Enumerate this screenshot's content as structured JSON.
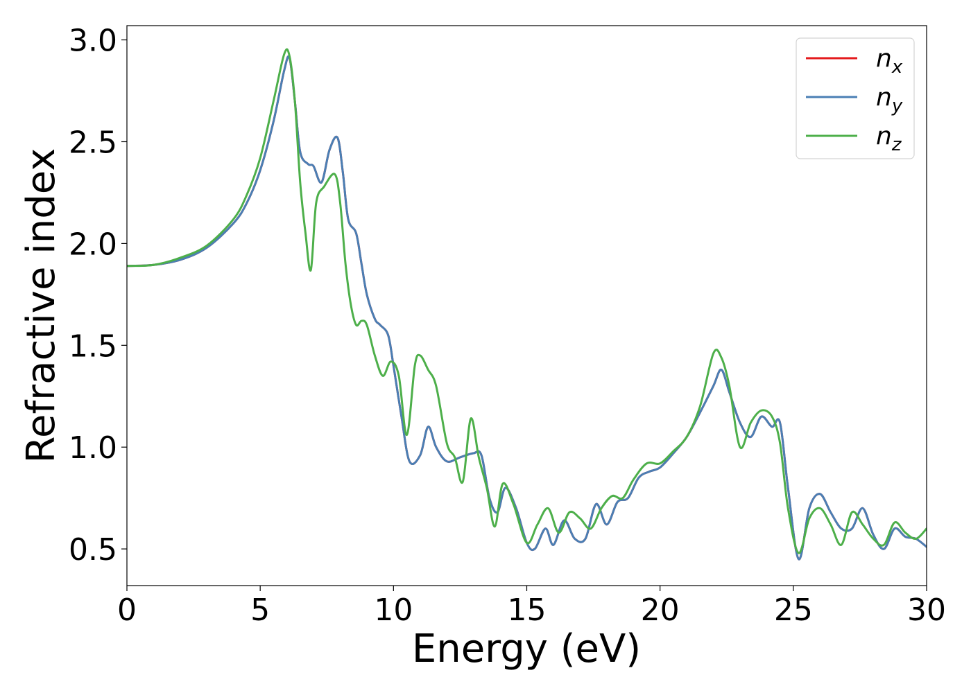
{
  "chart_data": {
    "type": "line",
    "xlabel": "Energy (eV)",
    "ylabel": "Refractive index",
    "xlim": [
      0,
      30
    ],
    "ylim": [
      0.32,
      3.07
    ],
    "xticks": [
      0,
      5,
      10,
      15,
      20,
      25,
      30
    ],
    "xtick_labels": [
      "0",
      "5",
      "10",
      "15",
      "20",
      "25",
      "30"
    ],
    "yticks": [
      0.5,
      1.0,
      1.5,
      2.0,
      2.5,
      3.0
    ],
    "ytick_labels": [
      "0.5",
      "1.0",
      "1.5",
      "2.0",
      "2.5",
      "3.0"
    ],
    "grid": false,
    "legend_position": "top-right",
    "series": [
      {
        "name": "n_x",
        "legend_main": "n",
        "legend_sub": "x",
        "color": "#e41a1c",
        "points": [
          [
            0,
            1.89
          ],
          [
            1,
            1.895
          ],
          [
            2,
            1.92
          ],
          [
            3,
            1.98
          ],
          [
            4,
            2.1
          ],
          [
            4.5,
            2.2
          ],
          [
            5,
            2.36
          ],
          [
            5.5,
            2.6
          ],
          [
            5.9,
            2.85
          ],
          [
            6.1,
            2.91
          ],
          [
            6.3,
            2.7
          ],
          [
            6.5,
            2.45
          ],
          [
            6.8,
            2.39
          ],
          [
            7,
            2.38
          ],
          [
            7.3,
            2.3
          ],
          [
            7.6,
            2.46
          ],
          [
            7.9,
            2.52
          ],
          [
            8.1,
            2.35
          ],
          [
            8.3,
            2.12
          ],
          [
            8.6,
            2.05
          ],
          [
            8.8,
            1.9
          ],
          [
            9,
            1.75
          ],
          [
            9.3,
            1.63
          ],
          [
            9.5,
            1.6
          ],
          [
            9.8,
            1.55
          ],
          [
            10,
            1.4
          ],
          [
            10.3,
            1.15
          ],
          [
            10.6,
            0.93
          ],
          [
            11,
            0.96
          ],
          [
            11.3,
            1.1
          ],
          [
            11.6,
            1.0
          ],
          [
            12,
            0.93
          ],
          [
            12.5,
            0.95
          ],
          [
            13,
            0.97
          ],
          [
            13.3,
            0.96
          ],
          [
            13.6,
            0.75
          ],
          [
            13.9,
            0.68
          ],
          [
            14.2,
            0.8
          ],
          [
            14.6,
            0.7
          ],
          [
            15,
            0.53
          ],
          [
            15.3,
            0.5
          ],
          [
            15.7,
            0.6
          ],
          [
            16,
            0.52
          ],
          [
            16.4,
            0.64
          ],
          [
            16.8,
            0.55
          ],
          [
            17.2,
            0.55
          ],
          [
            17.6,
            0.72
          ],
          [
            18,
            0.62
          ],
          [
            18.4,
            0.73
          ],
          [
            18.8,
            0.75
          ],
          [
            19.2,
            0.85
          ],
          [
            19.6,
            0.88
          ],
          [
            20,
            0.9
          ],
          [
            20.5,
            0.97
          ],
          [
            21,
            1.05
          ],
          [
            21.5,
            1.17
          ],
          [
            22,
            1.3
          ],
          [
            22.3,
            1.38
          ],
          [
            22.6,
            1.27
          ],
          [
            23,
            1.12
          ],
          [
            23.4,
            1.05
          ],
          [
            23.8,
            1.15
          ],
          [
            24.2,
            1.1
          ],
          [
            24.5,
            1.12
          ],
          [
            24.8,
            0.8
          ],
          [
            25.2,
            0.45
          ],
          [
            25.6,
            0.7
          ],
          [
            26,
            0.77
          ],
          [
            26.4,
            0.68
          ],
          [
            26.8,
            0.6
          ],
          [
            27.2,
            0.6
          ],
          [
            27.6,
            0.7
          ],
          [
            28,
            0.57
          ],
          [
            28.4,
            0.5
          ],
          [
            28.8,
            0.6
          ],
          [
            29.2,
            0.56
          ],
          [
            29.6,
            0.55
          ],
          [
            30,
            0.51
          ]
        ]
      },
      {
        "name": "n_y",
        "legend_main": "n",
        "legend_sub": "y",
        "color": "#4a7fb4",
        "points": [
          [
            0,
            1.89
          ],
          [
            1,
            1.895
          ],
          [
            2,
            1.92
          ],
          [
            3,
            1.98
          ],
          [
            4,
            2.1
          ],
          [
            4.5,
            2.2
          ],
          [
            5,
            2.36
          ],
          [
            5.5,
            2.6
          ],
          [
            5.9,
            2.85
          ],
          [
            6.1,
            2.91
          ],
          [
            6.3,
            2.7
          ],
          [
            6.5,
            2.45
          ],
          [
            6.8,
            2.39
          ],
          [
            7,
            2.38
          ],
          [
            7.3,
            2.3
          ],
          [
            7.6,
            2.46
          ],
          [
            7.9,
            2.52
          ],
          [
            8.1,
            2.35
          ],
          [
            8.3,
            2.12
          ],
          [
            8.6,
            2.05
          ],
          [
            8.8,
            1.9
          ],
          [
            9,
            1.75
          ],
          [
            9.3,
            1.63
          ],
          [
            9.5,
            1.6
          ],
          [
            9.8,
            1.55
          ],
          [
            10,
            1.4
          ],
          [
            10.3,
            1.15
          ],
          [
            10.6,
            0.93
          ],
          [
            11,
            0.96
          ],
          [
            11.3,
            1.1
          ],
          [
            11.6,
            1.0
          ],
          [
            12,
            0.93
          ],
          [
            12.5,
            0.95
          ],
          [
            13,
            0.97
          ],
          [
            13.3,
            0.96
          ],
          [
            13.6,
            0.75
          ],
          [
            13.9,
            0.68
          ],
          [
            14.2,
            0.8
          ],
          [
            14.6,
            0.7
          ],
          [
            15,
            0.53
          ],
          [
            15.3,
            0.5
          ],
          [
            15.7,
            0.6
          ],
          [
            16,
            0.52
          ],
          [
            16.4,
            0.64
          ],
          [
            16.8,
            0.55
          ],
          [
            17.2,
            0.55
          ],
          [
            17.6,
            0.72
          ],
          [
            18,
            0.62
          ],
          [
            18.4,
            0.73
          ],
          [
            18.8,
            0.75
          ],
          [
            19.2,
            0.85
          ],
          [
            19.6,
            0.88
          ],
          [
            20,
            0.9
          ],
          [
            20.5,
            0.97
          ],
          [
            21,
            1.05
          ],
          [
            21.5,
            1.17
          ],
          [
            22,
            1.3
          ],
          [
            22.3,
            1.38
          ],
          [
            22.6,
            1.27
          ],
          [
            23,
            1.12
          ],
          [
            23.4,
            1.05
          ],
          [
            23.8,
            1.15
          ],
          [
            24.2,
            1.1
          ],
          [
            24.5,
            1.12
          ],
          [
            24.8,
            0.8
          ],
          [
            25.2,
            0.45
          ],
          [
            25.6,
            0.7
          ],
          [
            26,
            0.77
          ],
          [
            26.4,
            0.68
          ],
          [
            26.8,
            0.6
          ],
          [
            27.2,
            0.6
          ],
          [
            27.6,
            0.7
          ],
          [
            28,
            0.57
          ],
          [
            28.4,
            0.5
          ],
          [
            28.8,
            0.6
          ],
          [
            29.2,
            0.56
          ],
          [
            29.6,
            0.55
          ],
          [
            30,
            0.51
          ]
        ]
      },
      {
        "name": "n_z",
        "legend_main": "n",
        "legend_sub": "z",
        "color": "#4daf4a",
        "points": [
          [
            0,
            1.89
          ],
          [
            1,
            1.895
          ],
          [
            2,
            1.93
          ],
          [
            3,
            1.99
          ],
          [
            4,
            2.12
          ],
          [
            4.5,
            2.24
          ],
          [
            5,
            2.42
          ],
          [
            5.5,
            2.7
          ],
          [
            5.9,
            2.93
          ],
          [
            6.1,
            2.92
          ],
          [
            6.3,
            2.7
          ],
          [
            6.5,
            2.3
          ],
          [
            6.7,
            2.05
          ],
          [
            6.9,
            1.87
          ],
          [
            7.1,
            2.2
          ],
          [
            7.4,
            2.28
          ],
          [
            7.8,
            2.34
          ],
          [
            8,
            2.2
          ],
          [
            8.2,
            1.9
          ],
          [
            8.4,
            1.7
          ],
          [
            8.6,
            1.6
          ],
          [
            8.8,
            1.62
          ],
          [
            9,
            1.6
          ],
          [
            9.3,
            1.45
          ],
          [
            9.6,
            1.35
          ],
          [
            9.9,
            1.42
          ],
          [
            10.2,
            1.35
          ],
          [
            10.5,
            1.06
          ],
          [
            10.8,
            1.4
          ],
          [
            11,
            1.45
          ],
          [
            11.3,
            1.38
          ],
          [
            11.6,
            1.3
          ],
          [
            12,
            1.02
          ],
          [
            12.3,
            0.95
          ],
          [
            12.6,
            0.83
          ],
          [
            12.9,
            1.14
          ],
          [
            13.2,
            0.95
          ],
          [
            13.5,
            0.8
          ],
          [
            13.8,
            0.61
          ],
          [
            14.1,
            0.82
          ],
          [
            14.5,
            0.72
          ],
          [
            15,
            0.53
          ],
          [
            15.4,
            0.62
          ],
          [
            15.8,
            0.7
          ],
          [
            16.2,
            0.58
          ],
          [
            16.6,
            0.68
          ],
          [
            17,
            0.65
          ],
          [
            17.4,
            0.6
          ],
          [
            17.8,
            0.7
          ],
          [
            18.2,
            0.76
          ],
          [
            18.6,
            0.75
          ],
          [
            19,
            0.84
          ],
          [
            19.5,
            0.92
          ],
          [
            20,
            0.92
          ],
          [
            20.5,
            0.98
          ],
          [
            21,
            1.05
          ],
          [
            21.5,
            1.2
          ],
          [
            22,
            1.46
          ],
          [
            22.3,
            1.44
          ],
          [
            22.6,
            1.3
          ],
          [
            23,
            1.0
          ],
          [
            23.4,
            1.12
          ],
          [
            23.8,
            1.18
          ],
          [
            24.2,
            1.15
          ],
          [
            24.5,
            1.02
          ],
          [
            24.8,
            0.7
          ],
          [
            25.2,
            0.48
          ],
          [
            25.6,
            0.65
          ],
          [
            26,
            0.7
          ],
          [
            26.4,
            0.62
          ],
          [
            26.8,
            0.52
          ],
          [
            27.2,
            0.68
          ],
          [
            27.6,
            0.62
          ],
          [
            28,
            0.55
          ],
          [
            28.4,
            0.52
          ],
          [
            28.8,
            0.63
          ],
          [
            29.2,
            0.58
          ],
          [
            29.6,
            0.55
          ],
          [
            30,
            0.6
          ]
        ]
      }
    ]
  }
}
